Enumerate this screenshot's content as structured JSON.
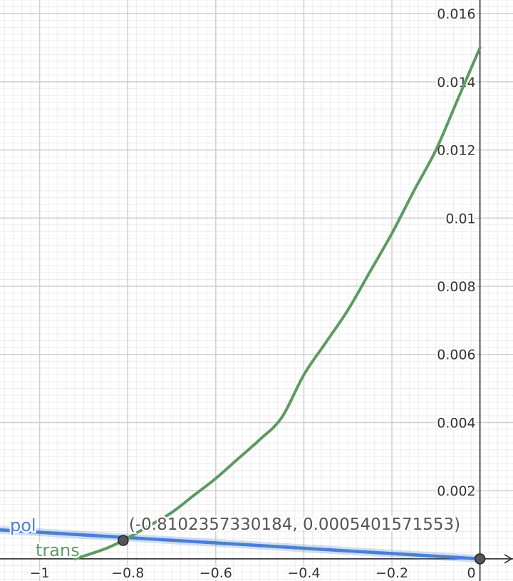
{
  "chart_data": {
    "type": "line",
    "x_ticks": [
      "−1",
      "−0.8",
      "−0.6",
      "−0.4",
      "−0.2",
      "0"
    ],
    "x_tick_values": [
      -1,
      -0.8,
      -0.6,
      -0.4,
      -0.2,
      0
    ],
    "y_ticks": [
      "0.002",
      "0.004",
      "0.006",
      "0.008",
      "0.01",
      "0.012",
      "0.014",
      "0.016"
    ],
    "y_tick_values": [
      0.002,
      0.004,
      0.006,
      0.008,
      0.01,
      0.012,
      0.014,
      0.016
    ],
    "xlim": [
      -1.09,
      0.075
    ],
    "ylim": [
      -0.00065,
      0.0164
    ],
    "grid": true,
    "series": [
      {
        "name": "pol",
        "color": "#4a7fd4",
        "x": [
          -1.09,
          0.0
        ],
        "y": [
          0.00085,
          0.0
        ]
      },
      {
        "name": "trans",
        "color": "#5e9a63",
        "x": [
          -0.92,
          -0.9,
          -0.85,
          -0.81,
          -0.8,
          -0.75,
          -0.7,
          -0.65,
          -0.6,
          -0.55,
          -0.5,
          -0.45,
          -0.4,
          -0.35,
          -0.3,
          -0.25,
          -0.2,
          -0.15,
          -0.1,
          -0.05,
          0.0
        ],
        "y": [
          0.0,
          8e-05,
          0.0003,
          0.00054,
          0.00061,
          0.00098,
          0.00136,
          0.00186,
          0.00236,
          0.00293,
          0.0035,
          0.00415,
          0.0054,
          0.00635,
          0.0073,
          0.00842,
          0.00955,
          0.0108,
          0.012,
          0.0135,
          0.015
        ]
      }
    ],
    "points": [
      {
        "x": -0.8102357330184,
        "y": 0.0005401571553,
        "label": "(-0.8102357330184, 0.0005401571553)"
      },
      {
        "x": 0,
        "y": 0,
        "label": ""
      }
    ]
  }
}
